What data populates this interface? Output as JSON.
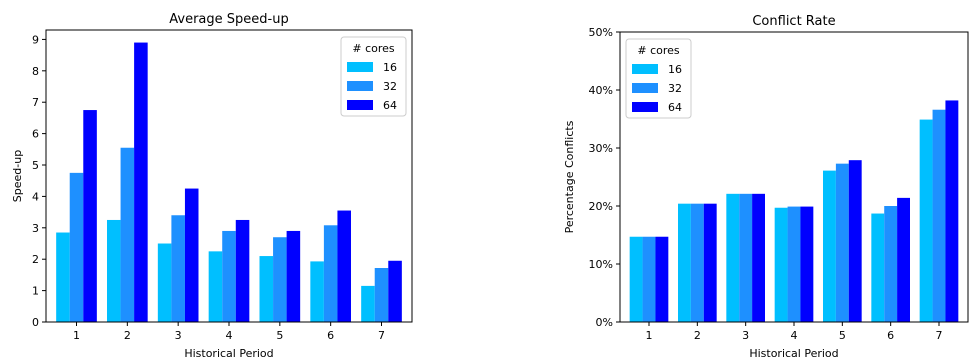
{
  "chart_data": [
    {
      "type": "bar",
      "title": "Average Speed-up",
      "xlabel": "Historical Period",
      "ylabel": "Speed-up",
      "categories": [
        "1",
        "2",
        "3",
        "4",
        "5",
        "6",
        "7"
      ],
      "ylim": [
        0,
        9.3
      ],
      "yticks": [
        0,
        1,
        2,
        3,
        4,
        5,
        6,
        7,
        8,
        9
      ],
      "ytick_labels": [
        "0",
        "1",
        "2",
        "3",
        "4",
        "5",
        "6",
        "7",
        "8",
        "9"
      ],
      "legend_title": "# cores",
      "legend_position": "top-right",
      "grid": false,
      "series": [
        {
          "name": "16",
          "color": "#00bfff",
          "values": [
            2.85,
            3.25,
            2.5,
            2.25,
            2.1,
            1.93,
            1.15
          ]
        },
        {
          "name": "32",
          "color": "#1e90ff",
          "values": [
            4.75,
            5.55,
            3.4,
            2.9,
            2.7,
            3.08,
            1.72
          ]
        },
        {
          "name": "64",
          "color": "#0000ff",
          "values": [
            6.75,
            8.9,
            4.25,
            3.25,
            2.9,
            3.55,
            1.95
          ]
        }
      ]
    },
    {
      "type": "bar",
      "title": "Conflict Rate",
      "xlabel": "Historical Period",
      "ylabel": "Percentage Conflicts",
      "categories": [
        "1",
        "2",
        "3",
        "4",
        "5",
        "6",
        "7"
      ],
      "ylim": [
        0,
        50
      ],
      "yticks": [
        0,
        10,
        20,
        30,
        40,
        50
      ],
      "ytick_labels": [
        "0%",
        "10%",
        "20%",
        "30%",
        "40%",
        "50%"
      ],
      "legend_title": "# cores",
      "legend_position": "top-left",
      "grid": false,
      "series": [
        {
          "name": "16",
          "color": "#00bfff",
          "values": [
            14.7,
            20.4,
            22.1,
            19.7,
            26.1,
            18.7,
            34.9
          ]
        },
        {
          "name": "32",
          "color": "#1e90ff",
          "values": [
            14.7,
            20.4,
            22.1,
            19.9,
            27.3,
            20.0,
            36.6
          ]
        },
        {
          "name": "64",
          "color": "#0000ff",
          "values": [
            14.7,
            20.4,
            22.1,
            19.9,
            27.9,
            21.4,
            38.2
          ]
        }
      ]
    }
  ]
}
